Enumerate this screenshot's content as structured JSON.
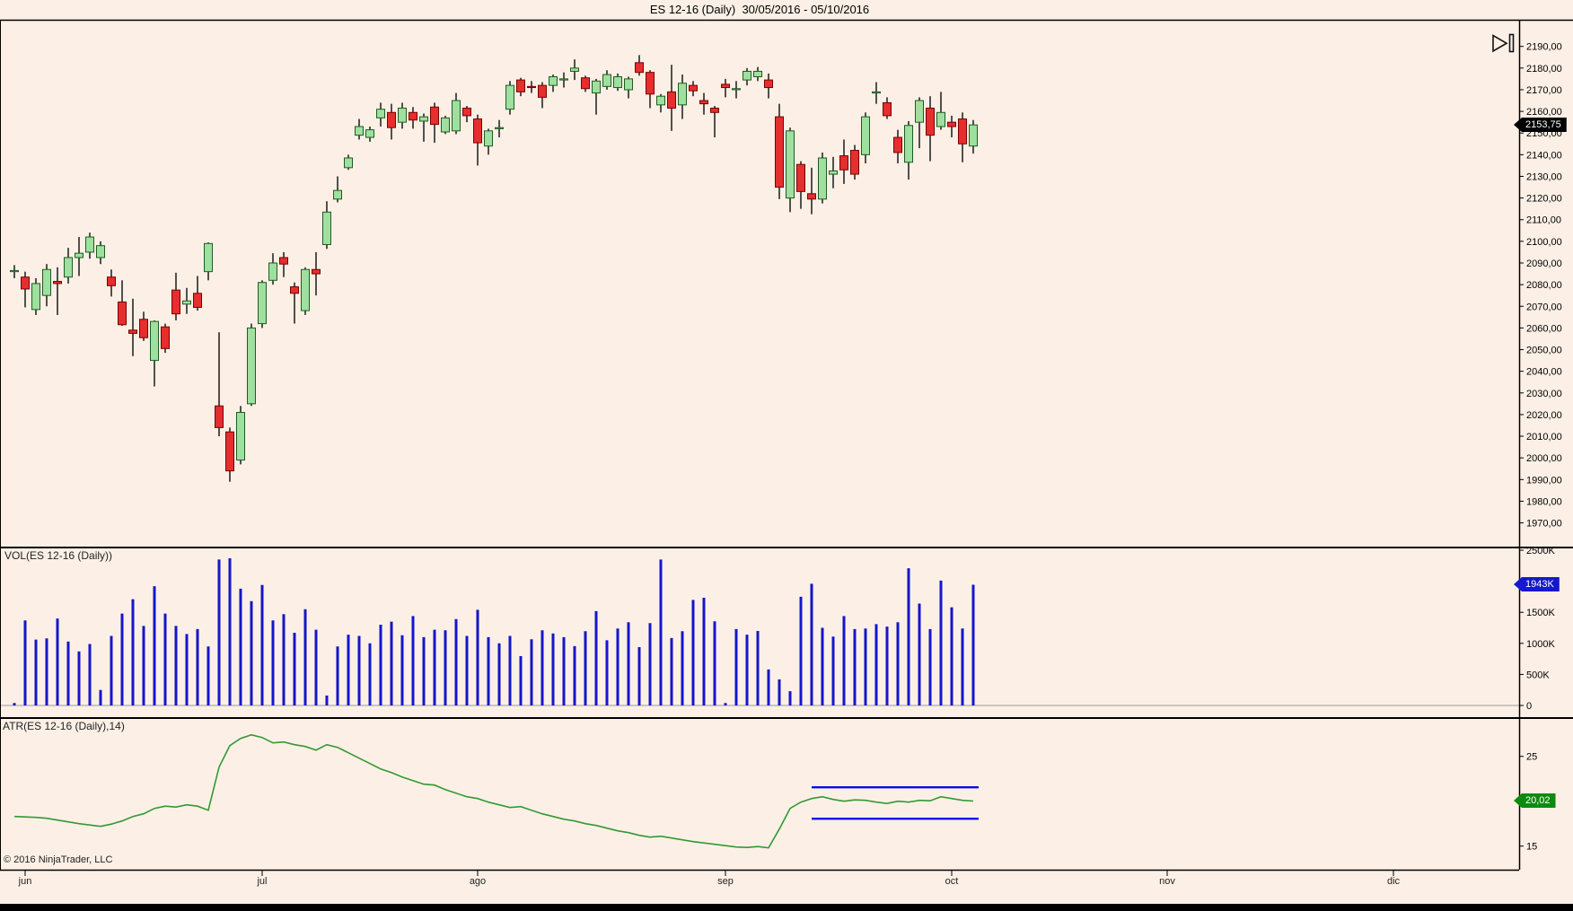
{
  "window": {
    "title": "ES 12-16 (Daily)  30/05/2016 - 05/10/2016"
  },
  "footer": {
    "copyright": "© 2016 NinjaTrader, LLC"
  },
  "panels": {
    "volume_label": "VOL(ES 12-16 (Daily))",
    "atr_label": "ATR(ES 12-16 (Daily),14)"
  },
  "price_axis": {
    "tick_labels": [
      "2190,00",
      "2180,00",
      "2170,00",
      "2160,00",
      "2150,00",
      "2140,00",
      "2130,00",
      "2120,00",
      "2110,00",
      "2100,00",
      "2090,00",
      "2080,00",
      "2070,00",
      "2060,00",
      "2050,00",
      "2040,00",
      "2030,00",
      "2020,00",
      "2010,00",
      "2000,00",
      "1990,00",
      "1980,00",
      "1970,00"
    ],
    "badge": "2153,75"
  },
  "volume_axis": {
    "tick_labels": [
      "2500K",
      "1500K",
      "1000K",
      "500K",
      "0"
    ],
    "tick_values_thousands": [
      2500,
      1500,
      1000,
      500,
      0
    ],
    "badge": "1943K"
  },
  "atr_axis": {
    "tick_labels": [
      "25",
      "15"
    ],
    "tick_values": [
      25,
      15
    ],
    "badge": "20,02"
  },
  "x_axis": {
    "month_labels": [
      "jun",
      "jul",
      "ago",
      "sep",
      "oct",
      "nov",
      "dic"
    ],
    "month_bar_index": [
      1,
      23,
      43,
      66,
      87,
      107,
      128
    ]
  },
  "colors": {
    "background": "#fcf0e6",
    "up_fill": "#9fdf9f",
    "up_stroke": "#1f5c1f",
    "down_fill": "#e62e2e",
    "down_stroke": "#7a0000",
    "wick": "#1a1a1a",
    "volume_bar": "#1515cc",
    "atr_line": "#339933",
    "drawn_line": "#0a0ae6",
    "zero_grid_line": "#9a9a9a",
    "panel_border": "#000000",
    "axis_text": "#000000",
    "price_badge_bg": "#000000",
    "volume_badge_bg": "#1717cf",
    "atr_badge_bg": "#0e8a0e"
  },
  "chart_data": [
    {
      "type": "candlestick",
      "title": "ES 12-16 (Daily)",
      "period": "30/05/2016 - 05/10/2016",
      "last_price": 2153.75,
      "ylim": [
        1958.5,
        2202
      ],
      "y_ticks": [
        2190,
        2180,
        2170,
        2160,
        2150,
        2140,
        2130,
        2120,
        2110,
        2100,
        2090,
        2080,
        2070,
        2060,
        2050,
        2040,
        2030,
        2020,
        2010,
        2000,
        1990,
        1980,
        1970
      ],
      "ohlc": [
        [
          2086,
          2089,
          2083,
          2086.5
        ],
        [
          2083.5,
          2086,
          2069.5,
          2078
        ],
        [
          2068.5,
          2083,
          2066,
          2080.5
        ],
        [
          2075,
          2089.5,
          2070,
          2087
        ],
        [
          2081.5,
          2088,
          2066,
          2080.5
        ],
        [
          2083.5,
          2097,
          2080.5,
          2092.5
        ],
        [
          2092.5,
          2102,
          2084,
          2094.5
        ],
        [
          2095,
          2104,
          2092,
          2102
        ],
        [
          2092.5,
          2100,
          2089.5,
          2098
        ],
        [
          2083.5,
          2087,
          2074.5,
          2079.5
        ],
        [
          2072,
          2082,
          2061,
          2061.5
        ],
        [
          2059,
          2073.5,
          2047,
          2057.5
        ],
        [
          2064,
          2067.5,
          2054,
          2055.5
        ],
        [
          2045,
          2063.5,
          2033,
          2063
        ],
        [
          2060.5,
          2062,
          2048.5,
          2050.5
        ],
        [
          2077.5,
          2085.5,
          2063.5,
          2066.5
        ],
        [
          2071,
          2078.5,
          2066.5,
          2072.5
        ],
        [
          2076,
          2084,
          2068,
          2069.5
        ],
        [
          2086,
          2099.5,
          2082,
          2099
        ],
        [
          2024,
          2058,
          2010,
          2014
        ],
        [
          2012,
          2014,
          1989,
          1994
        ],
        [
          1999,
          2024,
          1997,
          2021
        ],
        [
          2025,
          2062,
          2024,
          2060
        ],
        [
          2062,
          2082,
          2060,
          2081
        ],
        [
          2082,
          2094.5,
          2080,
          2090
        ],
        [
          2092.5,
          2095,
          2083.5,
          2089.5
        ],
        [
          2079,
          2081,
          2062,
          2076
        ],
        [
          2068,
          2088,
          2066,
          2087
        ],
        [
          2087,
          2095,
          2075,
          2085
        ],
        [
          2098.5,
          2118.5,
          2096.5,
          2113.5
        ],
        [
          2119.5,
          2130,
          2118,
          2123.5
        ],
        [
          2134,
          2140,
          2133,
          2138.5
        ],
        [
          2149,
          2156.5,
          2147,
          2153
        ],
        [
          2148,
          2153,
          2146,
          2151.5
        ],
        [
          2157,
          2164,
          2153,
          2161
        ],
        [
          2159.5,
          2163.5,
          2147,
          2152.5
        ],
        [
          2155,
          2164,
          2152,
          2161.5
        ],
        [
          2159.5,
          2162,
          2152,
          2156
        ],
        [
          2155.5,
          2159,
          2146,
          2157.5
        ],
        [
          2162,
          2164,
          2145.5,
          2154
        ],
        [
          2150.5,
          2158,
          2149.5,
          2157
        ],
        [
          2151,
          2168.5,
          2149.5,
          2165
        ],
        [
          2161.5,
          2162.5,
          2155,
          2158
        ],
        [
          2156.5,
          2158.5,
          2135,
          2145.5
        ],
        [
          2144,
          2152,
          2140,
          2151
        ],
        [
          2152,
          2156,
          2148,
          2152.5
        ],
        [
          2161,
          2174,
          2158.5,
          2172
        ],
        [
          2174.5,
          2175.5,
          2167,
          2169
        ],
        [
          2171.5,
          2174,
          2168.5,
          2171
        ],
        [
          2172,
          2173.5,
          2161.5,
          2166.5
        ],
        [
          2172,
          2177,
          2169,
          2176
        ],
        [
          2174.5,
          2178,
          2171,
          2175
        ],
        [
          2178.5,
          2184,
          2174.5,
          2180
        ],
        [
          2175.5,
          2176.5,
          2169,
          2170.5
        ],
        [
          2168.5,
          2175,
          2158.5,
          2174
        ],
        [
          2171.5,
          2179,
          2170,
          2177
        ],
        [
          2171,
          2177.5,
          2169.5,
          2176
        ],
        [
          2170,
          2176,
          2166,
          2175
        ],
        [
          2182.5,
          2186,
          2176.5,
          2178
        ],
        [
          2178,
          2179,
          2161.5,
          2168
        ],
        [
          2163,
          2168,
          2159.5,
          2167
        ],
        [
          2169,
          2181.5,
          2151,
          2161.5
        ],
        [
          2163,
          2177,
          2156.5,
          2173
        ],
        [
          2172,
          2174,
          2167,
          2169.5
        ],
        [
          2165,
          2168.5,
          2158.5,
          2163.5
        ],
        [
          2161.5,
          2162.5,
          2148,
          2159.5
        ],
        [
          2172.5,
          2175,
          2166.5,
          2171
        ],
        [
          2170,
          2174,
          2166,
          2170.5
        ],
        [
          2174.5,
          2180,
          2172,
          2178.5
        ],
        [
          2176,
          2180.5,
          2174,
          2178.5
        ],
        [
          2174.5,
          2177.5,
          2166,
          2171
        ],
        [
          2157.5,
          2163.5,
          2119.5,
          2125
        ],
        [
          2120,
          2152.5,
          2113.5,
          2151
        ],
        [
          2135.5,
          2137,
          2115,
          2123
        ],
        [
          2122,
          2134,
          2112.5,
          2119.5
        ],
        [
          2119.5,
          2141,
          2117.5,
          2138.5
        ],
        [
          2131,
          2139,
          2124.5,
          2132.5
        ],
        [
          2139.5,
          2147,
          2126.5,
          2133
        ],
        [
          2142,
          2144.5,
          2128.5,
          2131
        ],
        [
          2140,
          2159.5,
          2136,
          2157.5
        ],
        [
          2168.5,
          2173.5,
          2163.5,
          2169
        ],
        [
          2164,
          2166.5,
          2156.5,
          2158
        ],
        [
          2148,
          2151.5,
          2136,
          2141
        ],
        [
          2136.5,
          2155.5,
          2128.5,
          2153.5
        ],
        [
          2155,
          2166.5,
          2143,
          2165
        ],
        [
          2161.5,
          2167,
          2137,
          2149
        ],
        [
          2153,
          2169,
          2151.5,
          2159.5
        ],
        [
          2155,
          2158,
          2148,
          2153
        ],
        [
          2156.5,
          2159.5,
          2136.5,
          2145
        ],
        [
          2144,
          2156,
          2140.5,
          2153.75
        ]
      ]
    },
    {
      "type": "bar",
      "title": "VOL(ES 12-16 (Daily))",
      "last_value_thousands": 1943,
      "ylim_thousands": [
        0,
        2500
      ],
      "values_thousands": [
        40,
        1370,
        1060,
        1080,
        1400,
        1030,
        870,
        990,
        250,
        1120,
        1480,
        1710,
        1280,
        1920,
        1480,
        1280,
        1150,
        1230,
        950,
        2350,
        2370,
        1880,
        1680,
        1940,
        1370,
        1470,
        1170,
        1550,
        1220,
        160,
        950,
        1140,
        1120,
        1000,
        1300,
        1350,
        1130,
        1440,
        1100,
        1220,
        1210,
        1390,
        1120,
        1540,
        1100,
        1000,
        1120,
        795,
        1065,
        1210,
        1160,
        1100,
        955,
        1195,
        1520,
        1050,
        1240,
        1340,
        940,
        1325,
        2350,
        1085,
        1195,
        1700,
        1735,
        1355,
        40,
        1230,
        1140,
        1200,
        580,
        420,
        230,
        1750,
        1960,
        1250,
        1110,
        1440,
        1230,
        1240,
        1310,
        1270,
        1340,
        2210,
        1640,
        1230,
        2010,
        1580,
        1240,
        1943
      ]
    },
    {
      "type": "line",
      "title": "ATR(ES 12-16 (Daily),14)",
      "period": 14,
      "last_value": 20.02,
      "y_ticks": [
        25,
        15
      ],
      "values": [
        18.3,
        18.25,
        18.2,
        18.1,
        17.9,
        17.7,
        17.5,
        17.35,
        17.2,
        17.45,
        17.8,
        18.3,
        18.6,
        19.2,
        19.45,
        19.35,
        19.6,
        19.45,
        19.0,
        23.8,
        26.2,
        27.0,
        27.4,
        27.1,
        26.5,
        26.6,
        26.3,
        26.1,
        25.7,
        26.3,
        26.0,
        25.4,
        24.8,
        24.2,
        23.6,
        23.2,
        22.7,
        22.3,
        21.9,
        21.8,
        21.3,
        20.9,
        20.5,
        20.3,
        19.9,
        19.6,
        19.3,
        19.4,
        19.0,
        18.6,
        18.3,
        18.0,
        17.8,
        17.5,
        17.3,
        17.0,
        16.7,
        16.5,
        16.2,
        16.0,
        16.1,
        15.9,
        15.7,
        15.5,
        15.35,
        15.2,
        15.05,
        14.9,
        14.85,
        14.95,
        14.8,
        16.9,
        19.2,
        19.9,
        20.3,
        20.5,
        20.2,
        20.0,
        20.15,
        20.1,
        19.9,
        19.75,
        20.0,
        19.9,
        20.1,
        20.05,
        20.5,
        20.3,
        20.1,
        20.02
      ],
      "horizontal_lines": [
        {
          "value": 21.55,
          "start_bar": 74,
          "end_bar": 89.5
        },
        {
          "value": 18.05,
          "start_bar": 74,
          "end_bar": 89.5
        }
      ]
    }
  ]
}
